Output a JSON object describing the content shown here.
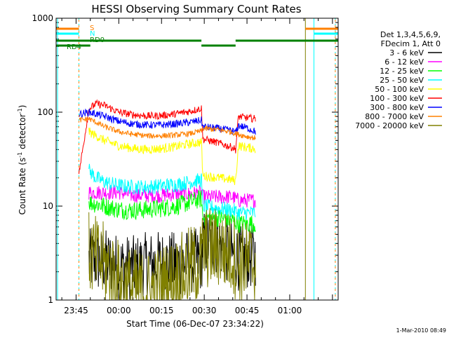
{
  "chart_data": {
    "type": "line",
    "title": "HESSI Observing Summary Count Rates",
    "xlabel": "Start Time (06-Dec-07 23:34:22)",
    "ylabel_main": "Count Rate (s",
    "ylabel_sup1": "-1",
    "ylabel_mid": " detector",
    "ylabel_sup2": "-1",
    "ylabel_end": ")",
    "y_scale": "log",
    "ylim": [
      1,
      1000
    ],
    "xlim_minutes": [
      -22,
      77
    ],
    "x_ticks": [
      {
        "label": "23:45",
        "t": -15
      },
      {
        "label": "00:00",
        "t": 0
      },
      {
        "label": "00:15",
        "t": 15
      },
      {
        "label": "00:30",
        "t": 30
      },
      {
        "label": "00:45",
        "t": 45
      },
      {
        "label": "01:00",
        "t": 60
      }
    ],
    "y_ticks": [
      {
        "label": "1",
        "v": 1
      },
      {
        "label": "10",
        "v": 10
      },
      {
        "label": "100",
        "v": 100
      },
      {
        "label": "1000",
        "v": 1000
      }
    ],
    "legend_header": [
      "Det 1,3,4,5,6,9,",
      "FDecim 1, Att 0"
    ],
    "legend_placement": "right",
    "series": [
      {
        "name": "3 - 6 keV",
        "color": "#000000",
        "data": [
          [
            -10.5,
            2.6
          ],
          [
            -5,
            2.6
          ],
          [
            0,
            2.3
          ],
          [
            5,
            2.2
          ],
          [
            10,
            2.4
          ],
          [
            15,
            2.5
          ],
          [
            20,
            2.4
          ],
          [
            25,
            2.6
          ],
          [
            29,
            2.6
          ],
          [
            29.5,
            4
          ],
          [
            35,
            4
          ],
          [
            40,
            3
          ],
          [
            41,
            3
          ],
          [
            42,
            2.8
          ],
          [
            45,
            2.9
          ],
          [
            48,
            2.9
          ]
        ]
      },
      {
        "name": "6 - 12 keV",
        "color": "#ff00ff",
        "data": [
          [
            -10.5,
            14
          ],
          [
            -5,
            14
          ],
          [
            0,
            14
          ],
          [
            5,
            13
          ],
          [
            10,
            13
          ],
          [
            15,
            13
          ],
          [
            20,
            13.5
          ],
          [
            25,
            13.5
          ],
          [
            29,
            14
          ],
          [
            29.5,
            12.5
          ],
          [
            35,
            12.5
          ],
          [
            40,
            12.5
          ],
          [
            41,
            12
          ],
          [
            42,
            11.5
          ],
          [
            45,
            11.5
          ],
          [
            48,
            11.5
          ]
        ]
      },
      {
        "name": "12 - 25 keV",
        "color": "#00ff00",
        "data": [
          [
            -10.5,
            11
          ],
          [
            -5,
            10
          ],
          [
            0,
            9.2
          ],
          [
            5,
            9
          ],
          [
            10,
            9.2
          ],
          [
            15,
            9.5
          ],
          [
            20,
            10
          ],
          [
            25,
            11
          ],
          [
            29,
            12
          ],
          [
            29.5,
            7.5
          ],
          [
            35,
            7.5
          ],
          [
            40,
            7
          ],
          [
            41,
            6.8
          ],
          [
            42,
            6.5
          ],
          [
            45,
            6.5
          ],
          [
            48,
            6.5
          ]
        ]
      },
      {
        "name": "25 - 50 keV",
        "color": "#00ffff",
        "data": [
          [
            -10.5,
            24
          ],
          [
            -8,
            20
          ],
          [
            -5,
            18
          ],
          [
            0,
            16.5
          ],
          [
            5,
            16
          ],
          [
            10,
            16
          ],
          [
            15,
            16.5
          ],
          [
            20,
            17
          ],
          [
            25,
            18
          ],
          [
            29,
            19
          ],
          [
            29.5,
            10
          ],
          [
            35,
            9.5
          ],
          [
            40,
            9
          ],
          [
            41,
            8.8
          ],
          [
            42,
            8.5
          ],
          [
            45,
            8.5
          ],
          [
            48,
            8.5
          ]
        ]
      },
      {
        "name": "50 - 100 keV",
        "color": "#ffff00",
        "data": [
          [
            -10.5,
            62
          ],
          [
            -8,
            56
          ],
          [
            -5,
            50
          ],
          [
            0,
            44
          ],
          [
            5,
            41
          ],
          [
            10,
            40
          ],
          [
            15,
            41
          ],
          [
            20,
            43
          ],
          [
            25,
            46
          ],
          [
            29,
            48
          ],
          [
            29.5,
            21
          ],
          [
            35,
            20
          ],
          [
            40,
            19
          ],
          [
            41,
            18.5
          ],
          [
            42,
            44
          ],
          [
            45,
            42
          ],
          [
            48,
            41
          ]
        ]
      },
      {
        "name": "100 - 300 keV",
        "color": "#ff0000",
        "data": [
          [
            -14,
            22
          ],
          [
            -10.5,
            108
          ],
          [
            -8,
            123
          ],
          [
            -5,
            118
          ],
          [
            0,
            100
          ],
          [
            5,
            94
          ],
          [
            10,
            91
          ],
          [
            15,
            92
          ],
          [
            20,
            96
          ],
          [
            25,
            102
          ],
          [
            29,
            110
          ],
          [
            29.5,
            52
          ],
          [
            35,
            47
          ],
          [
            40,
            42
          ],
          [
            41,
            40
          ],
          [
            42,
            90
          ],
          [
            45,
            87
          ],
          [
            48,
            85
          ]
        ]
      },
      {
        "name": "300 - 800 keV",
        "color": "#0000ff",
        "data": [
          [
            -14,
            95
          ],
          [
            -10.5,
            100
          ],
          [
            -8,
            96
          ],
          [
            -5,
            90
          ],
          [
            0,
            80
          ],
          [
            5,
            75
          ],
          [
            10,
            73
          ],
          [
            15,
            73
          ],
          [
            20,
            75
          ],
          [
            25,
            78
          ],
          [
            29,
            82
          ],
          [
            29.5,
            70
          ],
          [
            35,
            67
          ],
          [
            40,
            63
          ],
          [
            41,
            60
          ],
          [
            42,
            72
          ],
          [
            45,
            68
          ],
          [
            48,
            62
          ]
        ]
      },
      {
        "name": "800 - 7000 keV",
        "color": "#ff8000",
        "data": [
          [
            -14,
            82
          ],
          [
            -10.5,
            85
          ],
          [
            -8,
            78
          ],
          [
            -5,
            70
          ],
          [
            0,
            62
          ],
          [
            5,
            58
          ],
          [
            10,
            56
          ],
          [
            15,
            56
          ],
          [
            20,
            57
          ],
          [
            25,
            59
          ],
          [
            29,
            63
          ],
          [
            29.5,
            67
          ],
          [
            35,
            65
          ],
          [
            40,
            61
          ],
          [
            41,
            59
          ],
          [
            42,
            58
          ],
          [
            45,
            55
          ],
          [
            48,
            53
          ]
        ]
      },
      {
        "name": "7000 - 20000 keV",
        "color": "#808000",
        "data": [
          [
            -10.5,
            3.2
          ],
          [
            -5,
            2.4
          ],
          [
            0,
            1.6
          ],
          [
            5,
            1.3
          ],
          [
            10,
            1.2
          ],
          [
            15,
            1.4
          ],
          [
            20,
            1.7
          ],
          [
            25,
            2.2
          ],
          [
            29,
            2.6
          ],
          [
            29.5,
            3.6
          ],
          [
            35,
            3.6
          ],
          [
            40,
            3
          ],
          [
            41,
            2.8
          ],
          [
            42,
            2.5
          ],
          [
            45,
            2.5
          ],
          [
            48,
            2.5
          ]
        ]
      }
    ],
    "flag_labels": {
      "S": "S",
      "N": "N",
      "RD0": "RD0",
      "RD4": "RD4"
    },
    "footer_date": "1-Mar-2010 08:49"
  }
}
